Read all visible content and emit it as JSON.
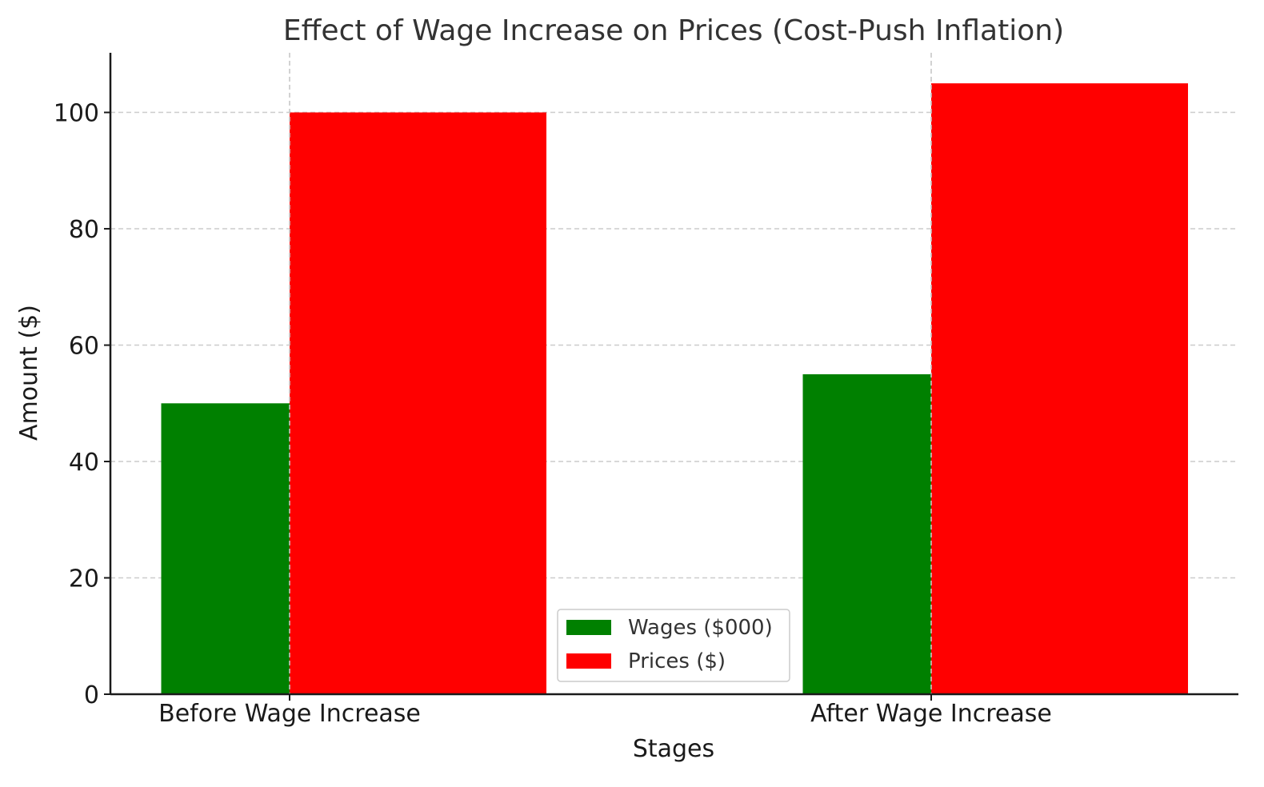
{
  "chart_data": {
    "type": "bar",
    "title": "Effect of Wage Increase on Prices (Cost-Push Inflation)",
    "xlabel": "Stages",
    "ylabel": "Amount ($)",
    "categories": [
      "Before Wage Increase",
      "After Wage Increase"
    ],
    "series": [
      {
        "name": "Wages ($000)",
        "values": [
          50,
          55
        ],
        "color": "#008000"
      },
      {
        "name": "Prices ($)",
        "values": [
          100,
          105
        ],
        "color": "#ff0000"
      }
    ],
    "ylim": [
      0,
      110.25
    ],
    "yticks": [
      0,
      20,
      40,
      60,
      80,
      100
    ],
    "grid": true,
    "grid_style": "dashed",
    "legend_position": "bottom-center"
  }
}
